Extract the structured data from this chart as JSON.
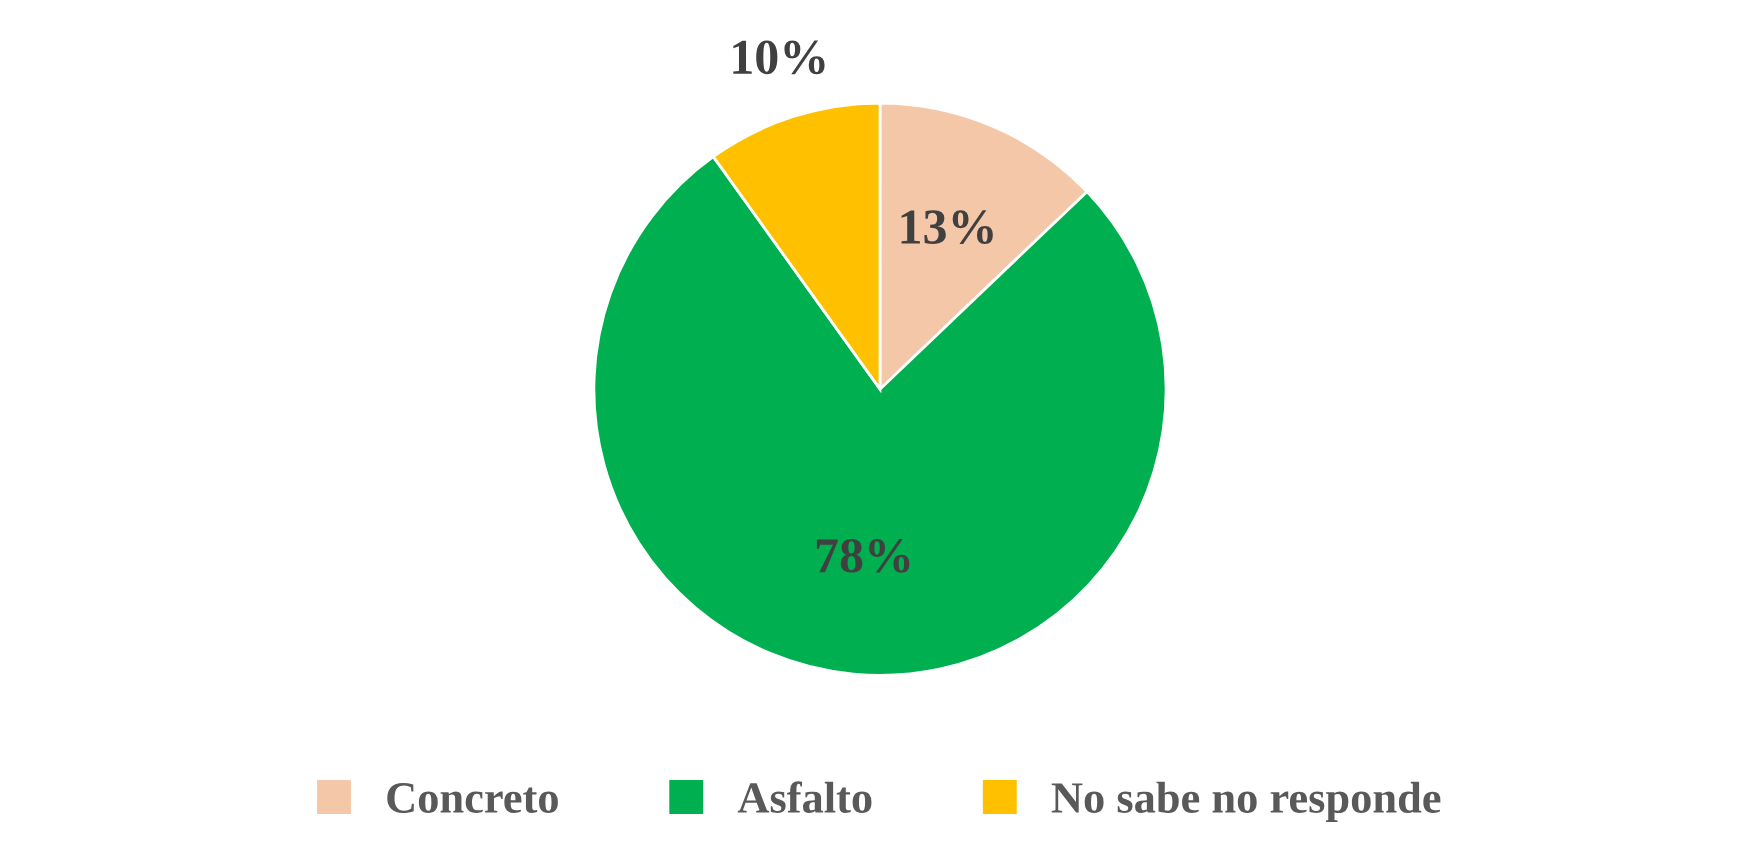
{
  "chart_data": {
    "type": "pie",
    "categories": [
      "Concreto",
      "Asfalto",
      "No sabe no responde"
    ],
    "values": [
      13,
      78,
      10
    ],
    "colors": [
      "#f4c7a8",
      "#00b050",
      "#ffc000"
    ],
    "value_labels": [
      "13%",
      "78%",
      "10%"
    ],
    "legend": "bottom"
  }
}
